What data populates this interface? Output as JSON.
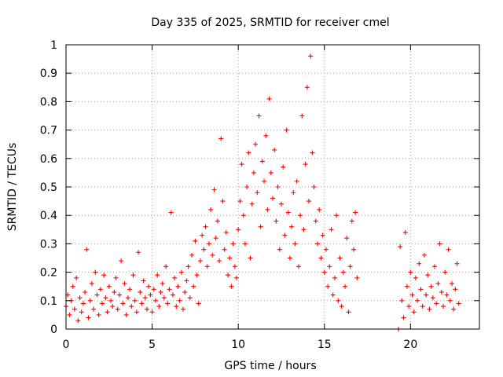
{
  "chart_data": {
    "type": "scatter",
    "title": "Day 335 of 2025, SRMTID for receiver cmel",
    "xlabel": "GPS time / hours",
    "ylabel": "SRMTID / TECUs",
    "xlim": [
      0,
      24
    ],
    "ylim": [
      0,
      1
    ],
    "x_ticks": [
      "0",
      "5",
      "10",
      "15",
      "20"
    ],
    "y_ticks": [
      "0",
      "0.1",
      "0.2",
      "0.3",
      "0.4",
      "0.5",
      "0.6",
      "0.7",
      "0.8",
      "0.9",
      "1"
    ],
    "grid": true,
    "marker": "plus",
    "series": [
      {
        "name": "SRMTID",
        "color": "#ff0000",
        "points": [
          [
            0.0,
            0.08
          ],
          [
            0.1,
            0.12
          ],
          [
            0.2,
            0.05
          ],
          [
            0.3,
            0.1
          ],
          [
            0.4,
            0.15
          ],
          [
            0.5,
            0.07
          ],
          [
            0.6,
            0.18
          ],
          [
            0.7,
            0.03
          ],
          [
            0.8,
            0.11
          ],
          [
            0.9,
            0.06
          ],
          [
            1.0,
            0.09
          ],
          [
            1.1,
            0.13
          ],
          [
            1.2,
            0.28
          ],
          [
            1.3,
            0.04
          ],
          [
            1.4,
            0.1
          ],
          [
            1.5,
            0.16
          ],
          [
            1.6,
            0.07
          ],
          [
            1.7,
            0.2
          ],
          [
            1.8,
            0.12
          ],
          [
            1.9,
            0.05
          ],
          [
            2.0,
            0.14
          ],
          [
            2.1,
            0.09
          ],
          [
            2.2,
            0.19
          ],
          [
            2.3,
            0.11
          ],
          [
            2.4,
            0.06
          ],
          [
            2.5,
            0.15
          ],
          [
            2.6,
            0.1
          ],
          [
            2.7,
            0.08
          ],
          [
            2.8,
            0.13
          ],
          [
            2.9,
            0.18
          ],
          [
            3.0,
            0.07
          ],
          [
            3.1,
            0.12
          ],
          [
            3.2,
            0.24
          ],
          [
            3.3,
            0.09
          ],
          [
            3.4,
            0.16
          ],
          [
            3.5,
            0.05
          ],
          [
            3.6,
            0.11
          ],
          [
            3.7,
            0.14
          ],
          [
            3.8,
            0.08
          ],
          [
            3.9,
            0.19
          ],
          [
            4.0,
            0.1
          ],
          [
            4.1,
            0.06
          ],
          [
            4.2,
            0.27
          ],
          [
            4.3,
            0.13
          ],
          [
            4.4,
            0.09
          ],
          [
            4.5,
            0.17
          ],
          [
            4.6,
            0.11
          ],
          [
            4.7,
            0.07
          ],
          [
            4.8,
            0.15
          ],
          [
            4.9,
            0.12
          ],
          [
            5.0,
            0.06
          ],
          [
            5.1,
            0.14
          ],
          [
            5.2,
            0.1
          ],
          [
            5.3,
            0.19
          ],
          [
            5.4,
            0.08
          ],
          [
            5.5,
            0.13
          ],
          [
            5.6,
            0.16
          ],
          [
            5.7,
            0.11
          ],
          [
            5.8,
            0.22
          ],
          [
            5.9,
            0.09
          ],
          [
            6.0,
            0.14
          ],
          [
            6.1,
            0.41
          ],
          [
            6.2,
            0.12
          ],
          [
            6.3,
            0.18
          ],
          [
            6.4,
            0.08
          ],
          [
            6.5,
            0.15
          ],
          [
            6.6,
            0.1
          ],
          [
            6.7,
            0.2
          ],
          [
            6.8,
            0.07
          ],
          [
            6.9,
            0.13
          ],
          [
            7.0,
            0.17
          ],
          [
            7.1,
            0.22
          ],
          [
            7.2,
            0.11
          ],
          [
            7.3,
            0.26
          ],
          [
            7.4,
            0.15
          ],
          [
            7.5,
            0.31
          ],
          [
            7.6,
            0.19
          ],
          [
            7.7,
            0.09
          ],
          [
            7.8,
            0.24
          ],
          [
            7.9,
            0.33
          ],
          [
            8.0,
            0.28
          ],
          [
            8.1,
            0.36
          ],
          [
            8.2,
            0.22
          ],
          [
            8.3,
            0.3
          ],
          [
            8.4,
            0.42
          ],
          [
            8.5,
            0.26
          ],
          [
            8.6,
            0.49
          ],
          [
            8.7,
            0.32
          ],
          [
            8.8,
            0.38
          ],
          [
            8.9,
            0.24
          ],
          [
            9.0,
            0.67
          ],
          [
            9.1,
            0.45
          ],
          [
            9.2,
            0.28
          ],
          [
            9.3,
            0.34
          ],
          [
            9.4,
            0.19
          ],
          [
            9.5,
            0.25
          ],
          [
            9.6,
            0.15
          ],
          [
            9.7,
            0.3
          ],
          [
            9.8,
            0.22
          ],
          [
            9.9,
            0.18
          ],
          [
            10.0,
            0.35
          ],
          [
            10.1,
            0.45
          ],
          [
            10.2,
            0.58
          ],
          [
            10.3,
            0.4
          ],
          [
            10.4,
            0.3
          ],
          [
            10.5,
            0.5
          ],
          [
            10.6,
            0.62
          ],
          [
            10.7,
            0.25
          ],
          [
            10.8,
            0.44
          ],
          [
            10.9,
            0.55
          ],
          [
            11.0,
            0.65
          ],
          [
            11.1,
            0.48
          ],
          [
            11.2,
            0.75
          ],
          [
            11.3,
            0.36
          ],
          [
            11.4,
            0.59
          ],
          [
            11.5,
            0.52
          ],
          [
            11.6,
            0.68
          ],
          [
            11.7,
            0.42
          ],
          [
            11.8,
            0.81
          ],
          [
            11.9,
            0.55
          ],
          [
            12.0,
            0.46
          ],
          [
            12.1,
            0.63
          ],
          [
            12.2,
            0.38
          ],
          [
            12.3,
            0.5
          ],
          [
            12.4,
            0.28
          ],
          [
            12.5,
            0.44
          ],
          [
            12.6,
            0.57
          ],
          [
            12.7,
            0.33
          ],
          [
            12.8,
            0.7
          ],
          [
            12.9,
            0.41
          ],
          [
            13.0,
            0.25
          ],
          [
            13.1,
            0.36
          ],
          [
            13.2,
            0.48
          ],
          [
            13.3,
            0.3
          ],
          [
            13.4,
            0.52
          ],
          [
            13.5,
            0.22
          ],
          [
            13.6,
            0.4
          ],
          [
            13.7,
            0.75
          ],
          [
            13.8,
            0.35
          ],
          [
            13.9,
            0.58
          ],
          [
            14.0,
            0.85
          ],
          [
            14.1,
            0.45
          ],
          [
            14.2,
            0.96
          ],
          [
            14.3,
            0.62
          ],
          [
            14.4,
            0.5
          ],
          [
            14.5,
            0.38
          ],
          [
            14.6,
            0.3
          ],
          [
            14.7,
            0.42
          ],
          [
            14.8,
            0.25
          ],
          [
            14.9,
            0.33
          ],
          [
            15.0,
            0.2
          ],
          [
            15.1,
            0.28
          ],
          [
            15.2,
            0.15
          ],
          [
            15.3,
            0.22
          ],
          [
            15.4,
            0.35
          ],
          [
            15.5,
            0.12
          ],
          [
            15.6,
            0.18
          ],
          [
            15.7,
            0.4
          ],
          [
            15.8,
            0.1
          ],
          [
            15.9,
            0.25
          ],
          [
            16.0,
            0.08
          ],
          [
            16.1,
            0.2
          ],
          [
            16.2,
            0.15
          ],
          [
            16.3,
            0.32
          ],
          [
            16.4,
            0.06
          ],
          [
            16.5,
            0.22
          ],
          [
            16.6,
            0.38
          ],
          [
            16.7,
            0.28
          ],
          [
            16.8,
            0.41
          ],
          [
            16.9,
            0.18
          ],
          [
            19.3,
            0.0
          ],
          [
            19.4,
            0.29
          ],
          [
            19.5,
            0.1
          ],
          [
            19.6,
            0.04
          ],
          [
            19.7,
            0.34
          ],
          [
            19.8,
            0.15
          ],
          [
            19.9,
            0.08
          ],
          [
            20.0,
            0.2
          ],
          [
            20.1,
            0.12
          ],
          [
            20.2,
            0.06
          ],
          [
            20.3,
            0.18
          ],
          [
            20.4,
            0.1
          ],
          [
            20.5,
            0.23
          ],
          [
            20.6,
            0.14
          ],
          [
            20.7,
            0.08
          ],
          [
            20.8,
            0.26
          ],
          [
            20.9,
            0.12
          ],
          [
            21.0,
            0.19
          ],
          [
            21.1,
            0.07
          ],
          [
            21.2,
            0.15
          ],
          [
            21.3,
            0.11
          ],
          [
            21.4,
            0.22
          ],
          [
            21.5,
            0.09
          ],
          [
            21.6,
            0.16
          ],
          [
            21.7,
            0.3
          ],
          [
            21.8,
            0.13
          ],
          [
            21.9,
            0.08
          ],
          [
            22.0,
            0.2
          ],
          [
            22.1,
            0.12
          ],
          [
            22.2,
            0.28
          ],
          [
            22.3,
            0.1
          ],
          [
            22.4,
            0.16
          ],
          [
            22.5,
            0.07
          ],
          [
            22.6,
            0.14
          ],
          [
            22.7,
            0.23
          ],
          [
            22.8,
            0.09
          ]
        ]
      }
    ]
  }
}
